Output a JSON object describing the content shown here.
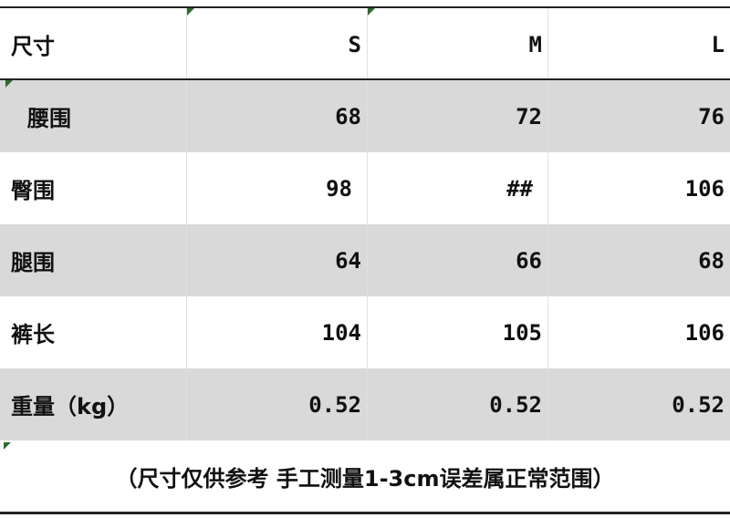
{
  "header": [
    "尺寸",
    "S",
    "M",
    "L"
  ],
  "rows": [
    {
      "label": " 腰围",
      "values": [
        "68",
        "72",
        "76"
      ],
      "shaded": true
    },
    {
      "label": "臀围",
      "values": [
        "98",
        "##",
        "106"
      ],
      "shaded": false
    },
    {
      "label": "腿围",
      "values": [
        "64",
        "66",
        "68"
      ],
      "shaded": true
    },
    {
      "label": "裤长",
      "values": [
        "104",
        "105",
        "106"
      ],
      "shaded": false
    },
    {
      "label": "重量（kg）",
      "values": [
        "0.52",
        "0.52",
        "0.52"
      ],
      "shaded": true
    }
  ],
  "footnote": "（尺寸仅供参考 手工测量1-3cm误差属正常范围）",
  "colors": {
    "shade": "#d9d9d9",
    "marker": "#2e6b2e"
  }
}
